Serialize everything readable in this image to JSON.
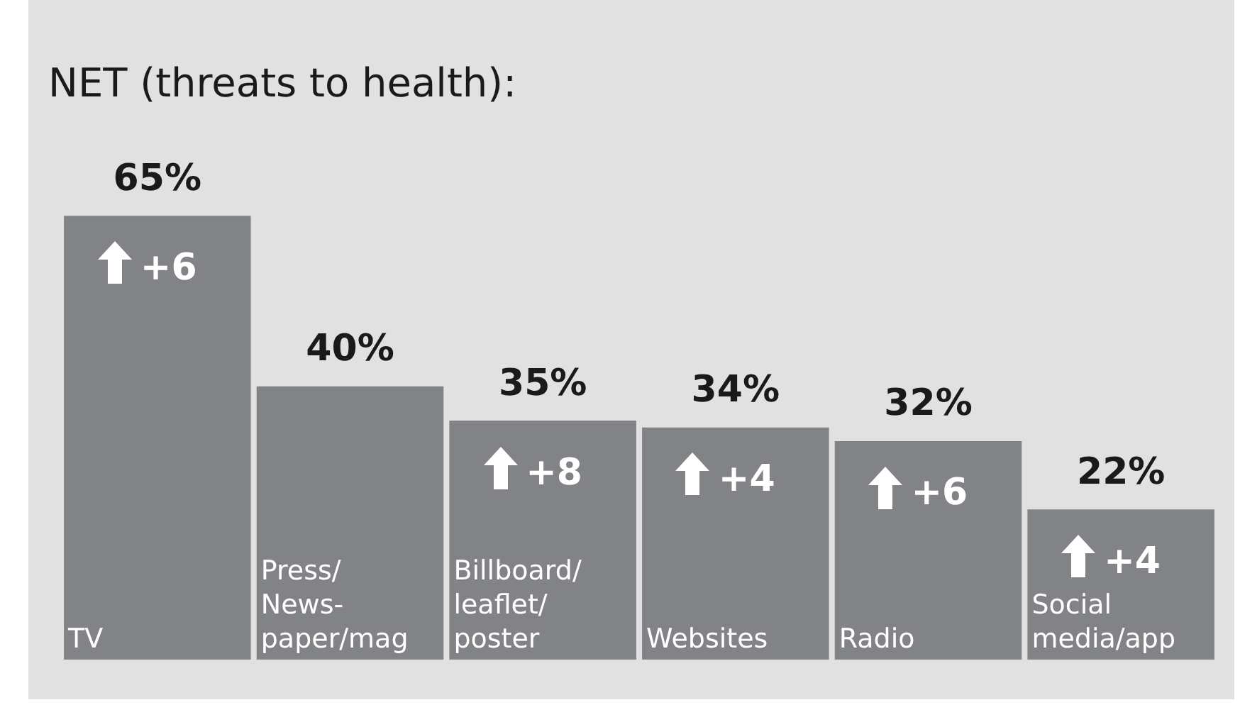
{
  "chart_data": {
    "type": "bar",
    "title": "NET (threats to health):",
    "categories": [
      "TV",
      "Press/\nNews-\npaper/mag",
      "Billboard/\nleaflet/\nposter",
      "Websites",
      "Radio",
      "Social\nmedia/app"
    ],
    "values": [
      65,
      40,
      35,
      34,
      32,
      22
    ],
    "value_labels": [
      "65%",
      "40%",
      "35%",
      "34%",
      "32%",
      "22%"
    ],
    "color": "#818386",
    "annotations": [
      {
        "text": "+6",
        "x": "TV",
        "y": 65
      },
      {
        "text": "+8",
        "x": "Billboard/\nleaflet/\nposter",
        "y": 35
      },
      {
        "text": "+4",
        "x": "Websites",
        "y": 34
      },
      {
        "text": "+6",
        "x": "Radio",
        "y": 32
      },
      {
        "text": "+4",
        "x": "Social\nmedia/app",
        "y": 22
      }
    ]
  }
}
